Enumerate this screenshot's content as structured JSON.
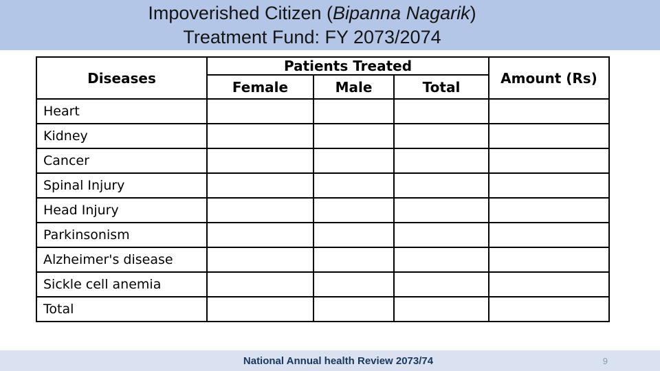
{
  "slide": {
    "title": {
      "line1_prefix": "Impoverished Citizen (",
      "line1_italic": "Bipanna Nagarik",
      "line1_suffix": ")",
      "line2": "Treatment Fund: FY 2073/2074"
    },
    "table": {
      "headers": {
        "diseases": "Diseases",
        "patients_treated": "Patients Treated",
        "female": "Female",
        "male": "Male",
        "total": "Total",
        "amount": "Amount (Rs)"
      },
      "rows": [
        {
          "disease": "Heart",
          "female": "",
          "male": "",
          "total": "",
          "amount": ""
        },
        {
          "disease": "Kidney",
          "female": "",
          "male": "",
          "total": "",
          "amount": ""
        },
        {
          "disease": "Cancer",
          "female": "",
          "male": "",
          "total": "",
          "amount": ""
        },
        {
          "disease": "Spinal Injury",
          "female": "",
          "male": "",
          "total": "",
          "amount": ""
        },
        {
          "disease": "Head Injury",
          "female": "",
          "male": "",
          "total": "",
          "amount": ""
        },
        {
          "disease": "Parkinsonism",
          "female": "",
          "male": "",
          "total": "",
          "amount": ""
        },
        {
          "disease": "Alzheimer's disease",
          "female": "",
          "male": "",
          "total": "",
          "amount": ""
        },
        {
          "disease": "Sickle cell anemia",
          "female": "",
          "male": "",
          "total": "",
          "amount": ""
        },
        {
          "disease": "Total",
          "female": "",
          "male": "",
          "total": "",
          "amount": ""
        }
      ]
    },
    "footer": {
      "text": "National Annual health Review 2073/74",
      "page_number": "9"
    },
    "colors": {
      "title_band": "#b4c6e7",
      "footer_band": "#dae2f1",
      "title_text": "#141414",
      "footer_text": "#17375d",
      "page_number": "#8d9ab1",
      "table_border": "#000000"
    }
  }
}
